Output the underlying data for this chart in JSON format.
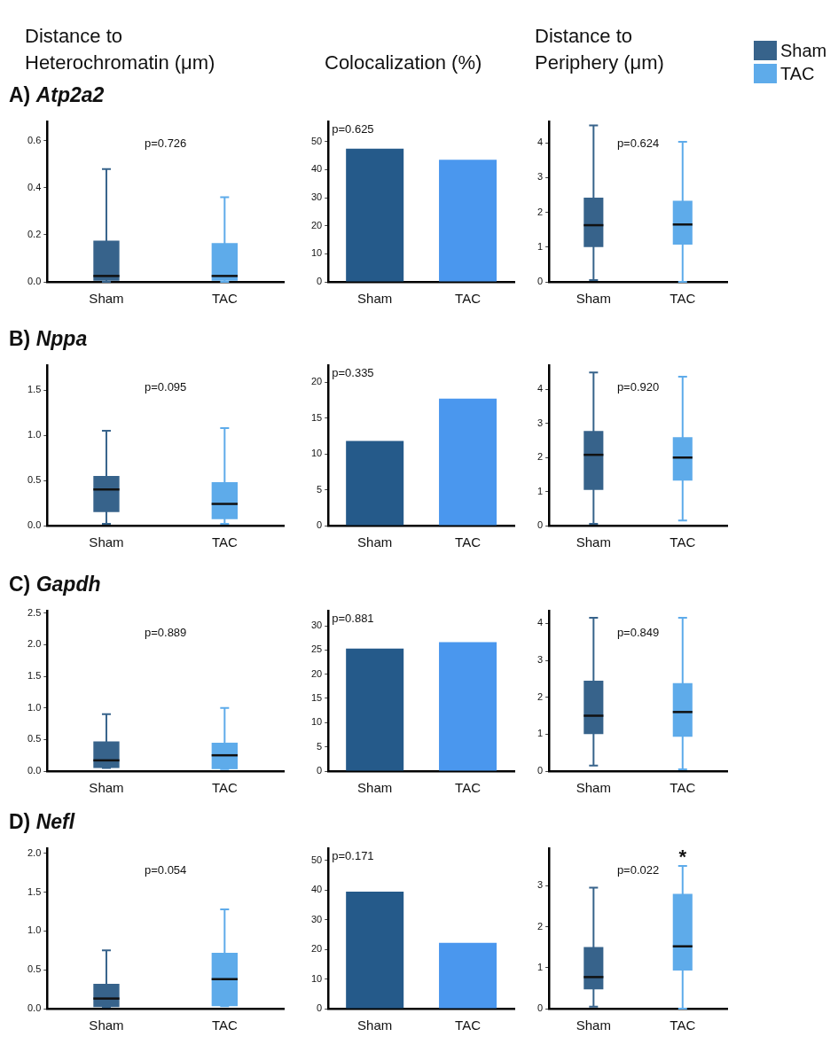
{
  "chart_data": [
    {
      "type": "box",
      "title": "Distance to Heterochromatin (μm)",
      "subtitle": "A) Atp2a2",
      "categories": [
        "Sham",
        "TAC"
      ],
      "ylim": [
        0,
        0.68
      ],
      "yticks": [
        {
          "value": 0,
          "label": "0.0"
        },
        0.2,
        0.4,
        0.6
      ],
      "annotations": [
        "p=0.726"
      ],
      "series": [
        {
          "color": "#37638b",
          "boxes": [
            {
              "low": 0,
              "q1": 0.005,
              "median": 0.025,
              "q3": 0.175,
              "high": 0.48
            },
            null
          ]
        },
        {
          "color": "#5eabea",
          "boxes": [
            null,
            {
              "low": 0,
              "q1": 0.005,
              "median": 0.025,
              "q3": 0.165,
              "high": 0.36
            }
          ]
        }
      ]
    },
    {
      "type": "bar",
      "title": "Colocalization (%)",
      "categories": [
        "Sham",
        "TAC"
      ],
      "ylim": [
        0,
        57
      ],
      "yticks": [
        0,
        10,
        20,
        30,
        40,
        50
      ],
      "annotations": [
        "p=0.625"
      ],
      "series": [
        {
          "color": "#255a8a",
          "values": [
            47.5,
            null
          ]
        },
        {
          "color": "#4a97ee",
          "values": [
            null,
            43.5
          ]
        }
      ]
    },
    {
      "type": "box",
      "title": "Distance to Periphery (μm)",
      "legend": "top right",
      "categories": [
        "Sham",
        "TAC"
      ],
      "ylim": [
        0,
        4.6
      ],
      "yticks": [
        0,
        1,
        2,
        3,
        4
      ],
      "annotations": [
        "p=0.624"
      ],
      "series": [
        {
          "name": "Sham",
          "color": "#37638b",
          "boxes": [
            {
              "low": 0.05,
              "q1": 1.0,
              "median": 1.63,
              "q3": 2.42,
              "high": 4.5
            },
            null
          ]
        },
        {
          "name": "TAC",
          "color": "#5eabea",
          "boxes": [
            null,
            {
              "low": 0,
              "q1": 1.07,
              "median": 1.65,
              "q3": 2.33,
              "high": 4.03
            }
          ]
        }
      ]
    },
    {
      "type": "box",
      "subtitle": "B) Nppa",
      "categories": [
        "Sham",
        "TAC"
      ],
      "ylim": [
        0,
        1.77
      ],
      "yticks": [
        {
          "value": 0,
          "label": "0.0"
        },
        0.5,
        {
          "value": 1,
          "label": "1.0"
        },
        1.5
      ],
      "annotations": [
        "p=0.095"
      ],
      "series": [
        {
          "color": "#37638b",
          "boxes": [
            {
              "low": 0.02,
              "q1": 0.15,
              "median": 0.4,
              "q3": 0.55,
              "high": 1.05
            },
            null
          ]
        },
        {
          "color": "#5eabea",
          "boxes": [
            null,
            {
              "low": 0.02,
              "q1": 0.07,
              "median": 0.24,
              "q3": 0.48,
              "high": 1.08
            }
          ]
        }
      ]
    },
    {
      "type": "bar",
      "categories": [
        "Sham",
        "TAC"
      ],
      "ylim": [
        0,
        22.3
      ],
      "yticks": [
        0,
        5,
        10,
        15,
        20
      ],
      "annotations": [
        "p=0.335"
      ],
      "series": [
        {
          "color": "#255a8a",
          "values": [
            11.8,
            null
          ]
        },
        {
          "color": "#4a97ee",
          "values": [
            null,
            17.7
          ]
        }
      ]
    },
    {
      "type": "box",
      "categories": [
        "Sham",
        "TAC"
      ],
      "ylim": [
        0,
        4.7
      ],
      "yticks": [
        0,
        1,
        2,
        3,
        4
      ],
      "annotations": [
        "p=0.920"
      ],
      "series": [
        {
          "color": "#37638b",
          "boxes": [
            {
              "low": 0.05,
              "q1": 1.05,
              "median": 2.08,
              "q3": 2.78,
              "high": 4.5
            },
            null
          ]
        },
        {
          "color": "#5eabea",
          "boxes": [
            null,
            {
              "low": 0.15,
              "q1": 1.32,
              "median": 2.0,
              "q3": 2.6,
              "high": 4.38
            }
          ]
        }
      ]
    },
    {
      "type": "box",
      "subtitle": "C) Gapdh",
      "categories": [
        "Sham",
        "TAC"
      ],
      "ylim": [
        0,
        2.53
      ],
      "yticks": [
        {
          "value": 0,
          "label": "0.0"
        },
        0.5,
        {
          "value": 1,
          "label": "1.0"
        },
        1.5,
        {
          "value": 2,
          "label": "2.0"
        },
        2.5
      ],
      "annotations": [
        "p=0.889"
      ],
      "series": [
        {
          "color": "#37638b",
          "boxes": [
            {
              "low": 0.05,
              "q1": 0.05,
              "median": 0.17,
              "q3": 0.47,
              "high": 0.9
            },
            null
          ]
        },
        {
          "color": "#5eabea",
          "boxes": [
            null,
            {
              "low": 0.03,
              "q1": 0.03,
              "median": 0.25,
              "q3": 0.45,
              "high": 1.0
            }
          ]
        }
      ]
    },
    {
      "type": "bar",
      "categories": [
        "Sham",
        "TAC"
      ],
      "ylim": [
        0,
        33
      ],
      "yticks": [
        0,
        5,
        10,
        15,
        20,
        25,
        30
      ],
      "annotations": [
        "p=0.881"
      ],
      "series": [
        {
          "color": "#255a8a",
          "values": [
            25.3,
            null
          ]
        },
        {
          "color": "#4a97ee",
          "values": [
            null,
            26.6
          ]
        }
      ]
    },
    {
      "type": "box",
      "categories": [
        "Sham",
        "TAC"
      ],
      "ylim": [
        0,
        4.33
      ],
      "yticks": [
        0,
        1,
        2,
        3,
        4
      ],
      "annotations": [
        "p=0.849"
      ],
      "series": [
        {
          "color": "#37638b",
          "boxes": [
            {
              "low": 0.15,
              "q1": 1.0,
              "median": 1.5,
              "q3": 2.45,
              "high": 4.15
            },
            null
          ]
        },
        {
          "color": "#5eabea",
          "boxes": [
            null,
            {
              "low": 0.05,
              "q1": 0.93,
              "median": 1.6,
              "q3": 2.38,
              "high": 4.15
            }
          ]
        }
      ]
    },
    {
      "type": "box",
      "subtitle": "D) Nefl",
      "categories": [
        "Sham",
        "TAC"
      ],
      "ylim": [
        0,
        2.06
      ],
      "yticks": [
        {
          "value": 0,
          "label": "0.0"
        },
        0.5,
        {
          "value": 1,
          "label": "1.0"
        },
        1.5,
        {
          "value": 2,
          "label": "2.0"
        }
      ],
      "annotations": [
        "p=0.054"
      ],
      "series": [
        {
          "color": "#37638b",
          "boxes": [
            {
              "low": 0.02,
              "q1": 0.02,
              "median": 0.13,
              "q3": 0.32,
              "high": 0.75
            },
            null
          ]
        },
        {
          "color": "#5eabea",
          "boxes": [
            null,
            {
              "low": 0.03,
              "q1": 0.03,
              "median": 0.38,
              "q3": 0.72,
              "high": 1.28
            }
          ]
        }
      ]
    },
    {
      "type": "bar",
      "categories": [
        "Sham",
        "TAC"
      ],
      "ylim": [
        0,
        54
      ],
      "yticks": [
        0,
        10,
        20,
        30,
        40,
        50
      ],
      "annotations": [
        "p=0.171"
      ],
      "series": [
        {
          "color": "#255a8a",
          "values": [
            39.5,
            null
          ]
        },
        {
          "color": "#4a97ee",
          "values": [
            null,
            22.2
          ]
        }
      ]
    },
    {
      "type": "box",
      "categories": [
        "Sham",
        "TAC"
      ],
      "ylim": [
        0,
        3.9
      ],
      "yticks": [
        0,
        1,
        2,
        3
      ],
      "annotations": [
        "p=0.022",
        {
          "text": "*",
          "x": "TAC",
          "y": 3.48
        }
      ],
      "series": [
        {
          "color": "#37638b",
          "boxes": [
            {
              "low": 0.05,
              "q1": 0.47,
              "median": 0.77,
              "q3": 1.5,
              "high": 2.95
            },
            null
          ]
        },
        {
          "color": "#5eabea",
          "boxes": [
            null,
            {
              "low": 0,
              "q1": 0.93,
              "median": 1.52,
              "q3": 2.8,
              "high": 3.48
            }
          ]
        }
      ]
    }
  ]
}
